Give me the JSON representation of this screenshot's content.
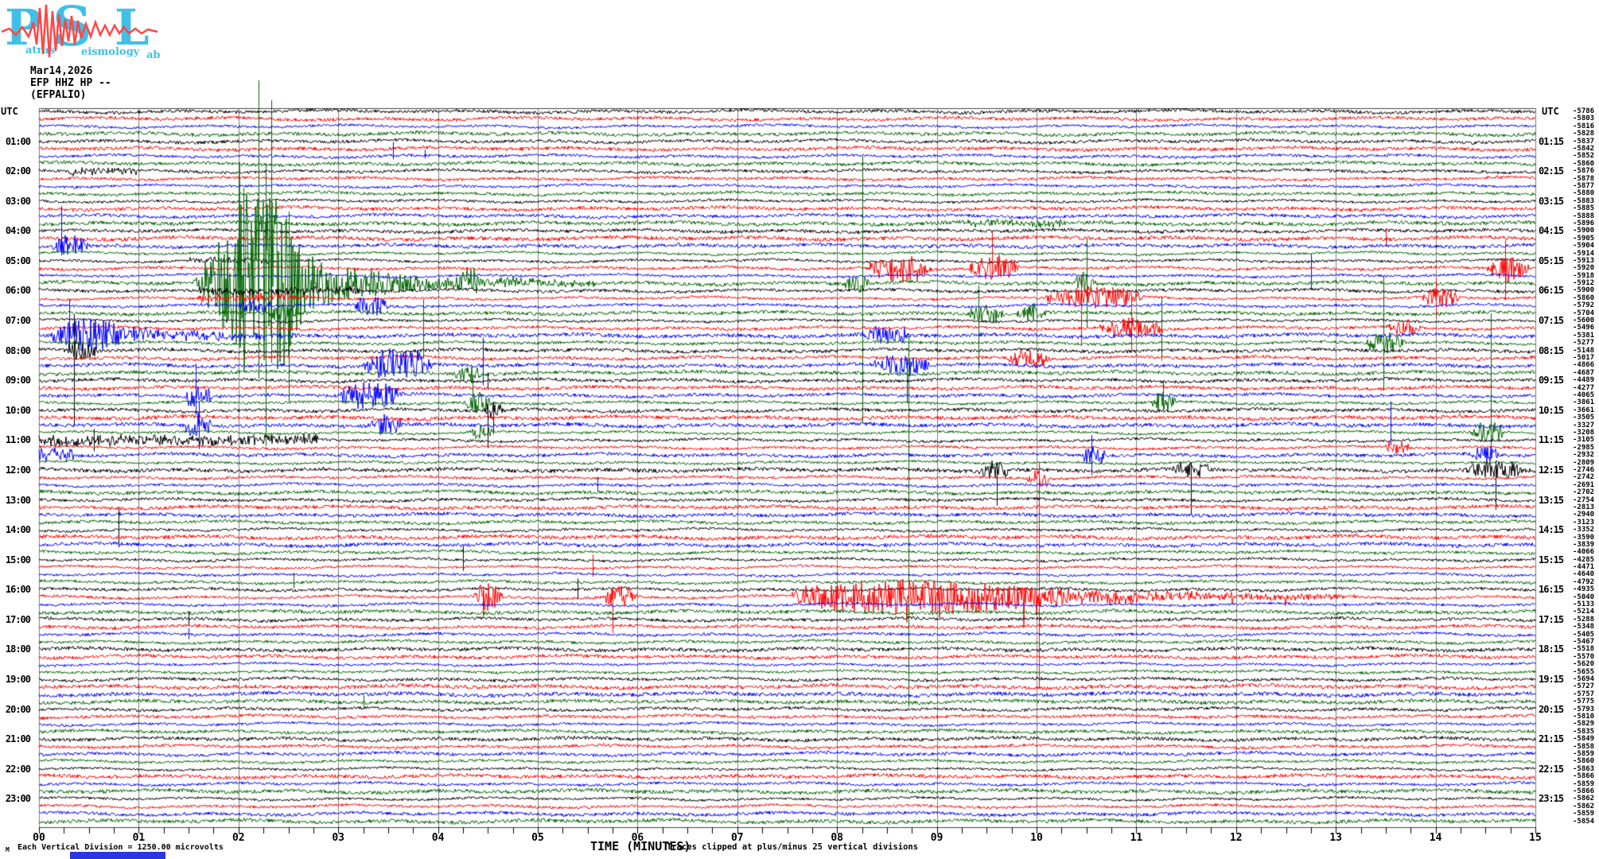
{
  "logo": {
    "letters": [
      "P",
      "S",
      "L"
    ],
    "words": [
      "atras",
      "eismology",
      "ab"
    ],
    "letter_color": "#3fc0e8",
    "trace_color": "#ff4646"
  },
  "header": {
    "date": "Mar14,2026",
    "channel": "EFP HHZ HP --",
    "station_name": "(EFPALIO)"
  },
  "footer": {
    "scale_glyph": "M",
    "scale_note": "Each Vertical Division = 1250.00 microvolts",
    "x_axis_title": "TIME (MINUTES)",
    "clip_note": "Traces clipped at plus/minus 25 vertical divisions",
    "bottom_bar_color": "#2b35e0"
  },
  "chart_data": {
    "type": "seismogram-helicorder",
    "title": "EFP HHZ HP -- (EFPALIO) webicorder, Mar14,2026",
    "xlabel": "TIME (MINUTES)",
    "x_range_minutes": [
      0,
      15
    ],
    "rows": 96,
    "minutes_per_row": 15,
    "row_color_cycle": [
      "#000000",
      "#ff0000",
      "#0000ff",
      "#006400"
    ],
    "grid_color": "#7f7f7f",
    "frame_color": "#444444",
    "utc_label_left": "UTC",
    "utc_label_right": "UTC",
    "left_hour_labels": [
      "01:00",
      "02:00",
      "03:00",
      "04:00",
      "05:00",
      "06:00",
      "07:00",
      "08:00",
      "09:00",
      "10:00",
      "11:00",
      "12:00",
      "13:00",
      "14:00",
      "15:00",
      "16:00",
      "17:00",
      "18:00",
      "19:00",
      "20:00",
      "21:00",
      "22:00",
      "23:00"
    ],
    "right_quarter_labels": [
      "01:15",
      "02:15",
      "03:15",
      "04:15",
      "05:15",
      "06:15",
      "07:15",
      "08:15",
      "09:15",
      "10:15",
      "11:15",
      "12:15",
      "13:15",
      "14:15",
      "15:15",
      "16:15",
      "17:15",
      "18:15",
      "19:15",
      "20:15",
      "21:15",
      "22:15",
      "23:15"
    ],
    "right_trace_offsets": [
      -5786,
      -5803,
      -5816,
      -5828,
      -5837,
      -5842,
      -5852,
      -5860,
      -5876,
      -5878,
      -5877,
      -5880,
      -5883,
      -5885,
      -5888,
      -5896,
      -5900,
      -5905,
      -5904,
      -5914,
      -5913,
      -5920,
      -5918,
      -5912,
      -5900,
      -5860,
      -5792,
      -5704,
      -5600,
      -5496,
      -5381,
      -5277,
      -5148,
      -5017,
      -4866,
      -4687,
      -4489,
      -4277,
      -4065,
      -3861,
      -3661,
      -3505,
      -3327,
      -3208,
      -3105,
      -2985,
      -2932,
      -2809,
      -2746,
      -2742,
      -2691,
      -2702,
      -2754,
      -2813,
      -2940,
      -3123,
      -3352,
      -3590,
      -3839,
      -4066,
      -4285,
      -4471,
      -4640,
      -4792,
      -4935,
      -5040,
      -5133,
      -5214,
      -5288,
      -5348,
      -5405,
      -5467,
      -5518,
      -5570,
      -5620,
      -5655,
      -5694,
      -5727,
      -5757,
      -5775,
      -5793,
      -5810,
      -5829,
      -5835,
      -5849,
      -5858,
      -5859,
      -5860,
      -5863,
      -5866,
      -5859,
      -5866,
      -5862,
      -5862,
      -5859,
      -5854
    ],
    "minute_tick_labels": [
      "00",
      "01",
      "02",
      "03",
      "04",
      "05",
      "06",
      "07",
      "08",
      "09",
      "10",
      "11",
      "12",
      "13",
      "14",
      "15"
    ],
    "events": [
      {
        "r": 6,
        "k": "spike",
        "t": 3.55,
        "u": 18,
        "d": 4
      },
      {
        "r": 6,
        "k": "spike",
        "t": 3.87,
        "u": 8,
        "d": 3
      },
      {
        "r": 8,
        "k": "fuzz",
        "t0": 0.3,
        "t1": 1.0,
        "a": 4
      },
      {
        "r": 15,
        "k": "fuzz",
        "t0": 9.3,
        "t1": 10.3,
        "a": 4
      },
      {
        "r": 17,
        "k": "spike",
        "t": 13.5,
        "u": 12,
        "d": 10
      },
      {
        "r": 18,
        "k": "burst",
        "t0": 0.12,
        "t1": 0.5,
        "a": 14,
        "sT": 0.22,
        "sU": 50,
        "sD": 12
      },
      {
        "r": 20,
        "k": "fuzz",
        "t0": 1.5,
        "t1": 2.3,
        "a": 3
      },
      {
        "r": 21,
        "k": "burst",
        "t0": 8.3,
        "t1": 8.95,
        "a": 18
      },
      {
        "r": 21,
        "k": "burst",
        "t0": 9.3,
        "t1": 9.85,
        "a": 15,
        "sT": 9.55,
        "sU": 45,
        "sD": 12
      },
      {
        "r": 21,
        "k": "burst",
        "t0": 14.5,
        "t1": 14.95,
        "a": 16,
        "sT": 14.7,
        "sU": 35,
        "sD": 40
      },
      {
        "r": 22,
        "k": "spike",
        "t": 12.75,
        "u": 28,
        "d": 18
      },
      {
        "r": 23,
        "k": "quake",
        "t0": 1.55,
        "t1": 3.2,
        "c": 5.6,
        "a": 118,
        "spikes": [
          [
            2.05,
            120,
            90
          ],
          [
            2.2,
            255,
            120
          ],
          [
            2.27,
            150,
            205
          ],
          [
            2.33,
            230,
            100
          ],
          [
            2.5,
            90,
            150
          ]
        ]
      },
      {
        "r": 23,
        "k": "burst",
        "t0": 4.15,
        "t1": 4.45,
        "a": 13
      },
      {
        "r": 23,
        "k": "burst",
        "t0": 8.05,
        "t1": 8.35,
        "a": 10,
        "sT": 8.25,
        "sU": 160,
        "sD": 175
      },
      {
        "r": 23,
        "k": "burst",
        "t0": 10.35,
        "t1": 10.6,
        "a": 12,
        "sT": 10.5,
        "sU": 55,
        "sD": 55
      },
      {
        "r": 24,
        "k": "fuzz",
        "t0": 1.6,
        "t1": 3.2,
        "a": 4
      },
      {
        "r": 25,
        "k": "fuzz",
        "t0": 1.6,
        "t1": 2.7,
        "a": 4
      },
      {
        "r": 25,
        "k": "burst",
        "t0": 10.05,
        "t1": 11.1,
        "a": 15,
        "sT": 10.45,
        "sU": 30,
        "sD": 60
      },
      {
        "r": 25,
        "k": "burst",
        "t0": 13.85,
        "t1": 14.25,
        "a": 13,
        "sT": 14.0,
        "sU": 25,
        "sD": 25
      },
      {
        "r": 26,
        "k": "burst",
        "t0": 2.0,
        "t1": 2.35,
        "a": 10
      },
      {
        "r": 26,
        "k": "burst",
        "t0": 3.15,
        "t1": 3.5,
        "a": 17
      },
      {
        "r": 27,
        "k": "burst",
        "t0": 2.3,
        "t1": 2.6,
        "a": 12,
        "sT": 2.26,
        "sU": 42,
        "sD": 35
      },
      {
        "r": 27,
        "k": "burst",
        "t0": 9.3,
        "t1": 9.7,
        "a": 12,
        "sT": 9.42,
        "sU": 35,
        "sD": 70
      },
      {
        "r": 27,
        "k": "burst",
        "t0": 9.8,
        "t1": 10.1,
        "a": 10
      },
      {
        "r": 27,
        "k": "spike",
        "t": 11.25,
        "u": 20,
        "d": 60
      },
      {
        "r": 29,
        "k": "burst",
        "t0": 10.6,
        "t1": 11.3,
        "a": 13,
        "sT": 10.95,
        "sU": 40,
        "sD": 28
      },
      {
        "r": 29,
        "k": "burst",
        "t0": 13.5,
        "t1": 13.85,
        "a": 12
      },
      {
        "r": 30,
        "k": "burst",
        "t0": 0.1,
        "t1": 0.9,
        "a": 22,
        "c": 2.6,
        "sT": 0.3,
        "sU": 45,
        "sD": 20
      },
      {
        "r": 30,
        "k": "burst",
        "t0": 8.25,
        "t1": 8.75,
        "a": 13
      },
      {
        "r": 31,
        "k": "spike",
        "t": 3.85,
        "u": 55,
        "d": 20
      },
      {
        "r": 31,
        "k": "burst",
        "t0": 13.3,
        "t1": 13.7,
        "a": 14,
        "sT": 13.48,
        "sU": 85,
        "sD": 60
      },
      {
        "r": 32,
        "k": "burst",
        "t0": 0.25,
        "t1": 0.6,
        "a": 12,
        "sT": 0.35,
        "sU": 45,
        "sD": 95
      },
      {
        "r": 33,
        "k": "burst",
        "t0": 9.7,
        "t1": 10.15,
        "a": 11
      },
      {
        "r": 34,
        "k": "burst",
        "t0": 3.25,
        "t1": 3.95,
        "a": 22
      },
      {
        "r": 34,
        "k": "spike",
        "t": 4.45,
        "u": 35,
        "d": 25
      },
      {
        "r": 34,
        "k": "burst",
        "t0": 8.35,
        "t1": 8.95,
        "a": 13,
        "sT": 8.7,
        "sU": 10,
        "sD": 48
      },
      {
        "r": 35,
        "k": "burst",
        "t0": 4.15,
        "t1": 4.45,
        "a": 12
      },
      {
        "r": 35,
        "k": "spike",
        "t": 8.72,
        "u": 50,
        "d": 420
      },
      {
        "r": 36,
        "k": "spike",
        "t": 4.5,
        "u": 10,
        "d": 12
      },
      {
        "r": 38,
        "k": "burst",
        "t0": 1.45,
        "t1": 1.75,
        "a": 16,
        "sT": 1.57,
        "sU": 40,
        "sD": 25
      },
      {
        "r": 38,
        "k": "burst",
        "t0": 3.0,
        "t1": 3.65,
        "a": 20
      },
      {
        "r": 39,
        "k": "burst",
        "t0": 4.25,
        "t1": 4.55,
        "a": 12,
        "sT": 4.35,
        "sU": 30,
        "sD": 8
      },
      {
        "r": 39,
        "k": "burst",
        "t0": 11.15,
        "t1": 11.4,
        "a": 13,
        "sT": 11.27,
        "sU": 28,
        "sD": 8
      },
      {
        "r": 40,
        "k": "burst",
        "t0": 4.45,
        "t1": 4.7,
        "a": 11,
        "sT": 4.55,
        "sU": 10,
        "sD": 30
      },
      {
        "r": 42,
        "k": "burst",
        "t0": 1.45,
        "t1": 1.75,
        "a": 16,
        "sT": 1.6,
        "sU": 30,
        "sD": 30
      },
      {
        "r": 42,
        "k": "burst",
        "t0": 3.3,
        "t1": 3.65,
        "a": 13
      },
      {
        "r": 42,
        "k": "spike",
        "t": 13.55,
        "u": 30,
        "d": 25
      },
      {
        "r": 43,
        "k": "burst",
        "t0": 4.3,
        "t1": 4.55,
        "a": 10
      },
      {
        "r": 43,
        "k": "burst",
        "t0": 14.35,
        "t1": 14.7,
        "a": 15,
        "sT": 14.55,
        "sU": 150,
        "sD": 20
      },
      {
        "r": 44,
        "k": "fuzz",
        "t0": 0.0,
        "t1": 2.8,
        "a": 6
      },
      {
        "r": 44,
        "k": "spike",
        "t": 0.55,
        "u": 14,
        "d": 14
      },
      {
        "r": 44,
        "k": "spike",
        "t": 4.5,
        "u": 35,
        "d": 10
      },
      {
        "r": 45,
        "k": "fuzz",
        "t0": 13.5,
        "t1": 13.75,
        "a": 7
      },
      {
        "r": 46,
        "k": "fuzz",
        "t0": 0.0,
        "t1": 0.35,
        "a": 8
      },
      {
        "r": 46,
        "k": "burst",
        "t0": 10.45,
        "t1": 10.7,
        "a": 13,
        "sT": 10.55,
        "sU": 25,
        "sD": 25
      },
      {
        "r": 46,
        "k": "burst",
        "t0": 14.35,
        "t1": 14.65,
        "a": 10
      },
      {
        "r": 48,
        "k": "burst",
        "t0": 9.4,
        "t1": 9.75,
        "a": 12,
        "sT": 9.6,
        "sU": 10,
        "sD": 45
      },
      {
        "r": 48,
        "k": "burst",
        "t0": 11.35,
        "t1": 11.75,
        "a": 10,
        "sT": 11.55,
        "sU": 10,
        "sD": 55
      },
      {
        "r": 48,
        "k": "burst",
        "t0": 14.25,
        "t1": 14.95,
        "a": 12,
        "sT": 14.6,
        "sU": 12,
        "sD": 50
      },
      {
        "r": 49,
        "k": "burst",
        "t0": 9.9,
        "t1": 10.15,
        "a": 14,
        "sT": 10.02,
        "sU": 20,
        "sD": 265
      },
      {
        "r": 50,
        "k": "spike",
        "t": 5.6,
        "u": 10,
        "d": 8
      },
      {
        "r": 56,
        "k": "spike",
        "t": 0.8,
        "u": 28,
        "d": 22
      },
      {
        "r": 60,
        "k": "spike",
        "t": 4.25,
        "u": 18,
        "d": 14
      },
      {
        "r": 61,
        "k": "spike",
        "t": 5.55,
        "u": 16,
        "d": 12
      },
      {
        "r": 63,
        "k": "spike",
        "t": 2.55,
        "u": 12,
        "d": 8
      },
      {
        "r": 64,
        "k": "spike",
        "t": 5.4,
        "u": 14,
        "d": 12
      },
      {
        "r": 65,
        "k": "burst",
        "t0": 4.35,
        "t1": 4.65,
        "a": 18,
        "sT": 4.45,
        "sU": 12,
        "sD": 25
      },
      {
        "r": 65,
        "k": "burst",
        "t0": 5.65,
        "t1": 6.0,
        "a": 14,
        "sT": 5.75,
        "sU": 10,
        "sD": 45
      },
      {
        "r": 65,
        "k": "tremor",
        "t0": 7.55,
        "t1": 13.2,
        "a": 22
      },
      {
        "r": 68,
        "k": "spike",
        "t": 1.5,
        "u": 10,
        "d": 8
      },
      {
        "r": 70,
        "k": "spike",
        "t": 1.5,
        "u": 8,
        "d": 6
      },
      {
        "r": 79,
        "k": "spike",
        "t": 3.25,
        "u": 8,
        "d": 6
      }
    ]
  }
}
